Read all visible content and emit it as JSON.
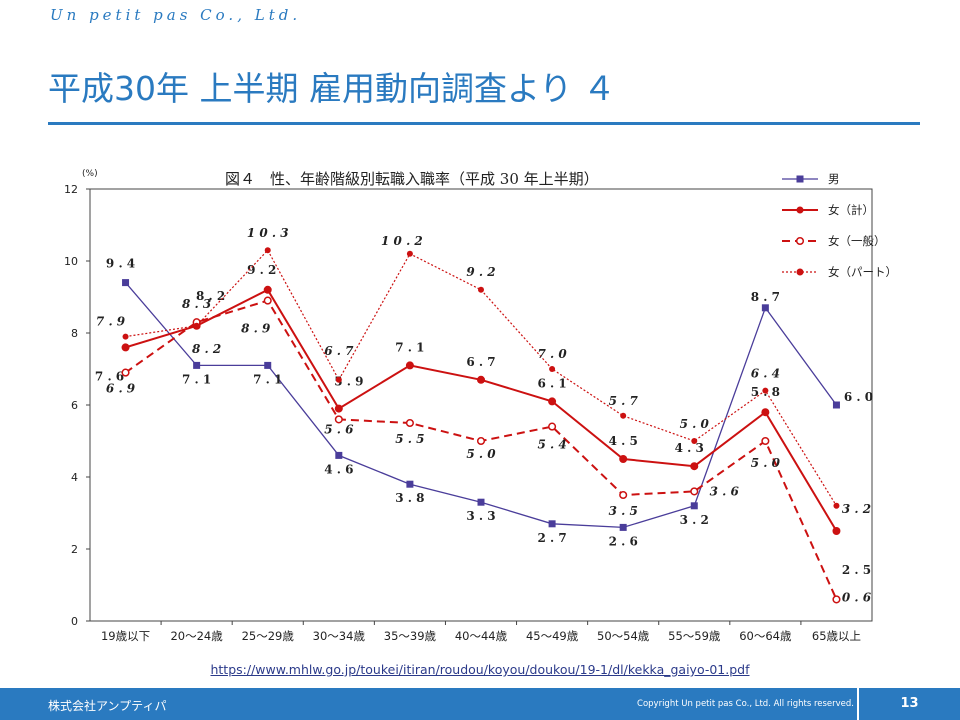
{
  "header": {
    "brand": "Un petit pas Co., Ltd.",
    "title": "平成30年 上半期 雇用動向調査より ４"
  },
  "colors": {
    "accent": "#2a7ac0",
    "male": "#4a3d9a",
    "female": "#cc1111"
  },
  "chart_data": {
    "type": "line",
    "title": "図４　性、年齢階級別転職入職率（平成 30 年上半期）",
    "ylabel": "(%)",
    "ylim": [
      0,
      12
    ],
    "yticks": [
      0,
      2,
      4,
      6,
      8,
      10,
      12
    ],
    "grid": false,
    "legend_position": "top-right",
    "categories": [
      "19歳以下",
      "20～24歳",
      "25～29歳",
      "30～34歳",
      "35～39歳",
      "40～44歳",
      "45～49歳",
      "50～54歳",
      "55～59歳",
      "60～64歳",
      "65歳以上"
    ],
    "series": [
      {
        "name": "男",
        "style": "solid-square",
        "color": "#4a3d9a",
        "values": [
          9.4,
          7.1,
          7.1,
          4.6,
          3.8,
          3.3,
          2.7,
          2.6,
          3.2,
          8.7,
          6.0
        ]
      },
      {
        "name": "女（計）",
        "style": "solid-dot",
        "color": "#cc1111",
        "values": [
          7.6,
          8.2,
          9.2,
          5.9,
          7.1,
          6.7,
          6.1,
          4.5,
          4.3,
          5.8,
          2.5
        ]
      },
      {
        "name": "女（一般）",
        "style": "dashed-open",
        "color": "#cc1111",
        "values": [
          6.9,
          8.3,
          8.9,
          5.6,
          5.5,
          5.0,
          5.4,
          3.5,
          3.6,
          5.0,
          0.6
        ]
      },
      {
        "name": "女（パート）",
        "style": "dotted-dot",
        "color": "#cc1111",
        "values": [
          7.9,
          8.2,
          10.3,
          6.7,
          10.2,
          9.2,
          7.0,
          5.7,
          5.0,
          6.4,
          3.2
        ]
      }
    ]
  },
  "source": {
    "url": "https://www.mhlw.go.jp/toukei/itiran/roudou/koyou/doukou/19-1/dl/kekka_gaiyo-01.pdf"
  },
  "footer": {
    "company": "株式会社アンプティパ",
    "copyright": "Copyright  Un petit pas Co.,  Ltd.  All rights reserved.",
    "page": "13"
  }
}
